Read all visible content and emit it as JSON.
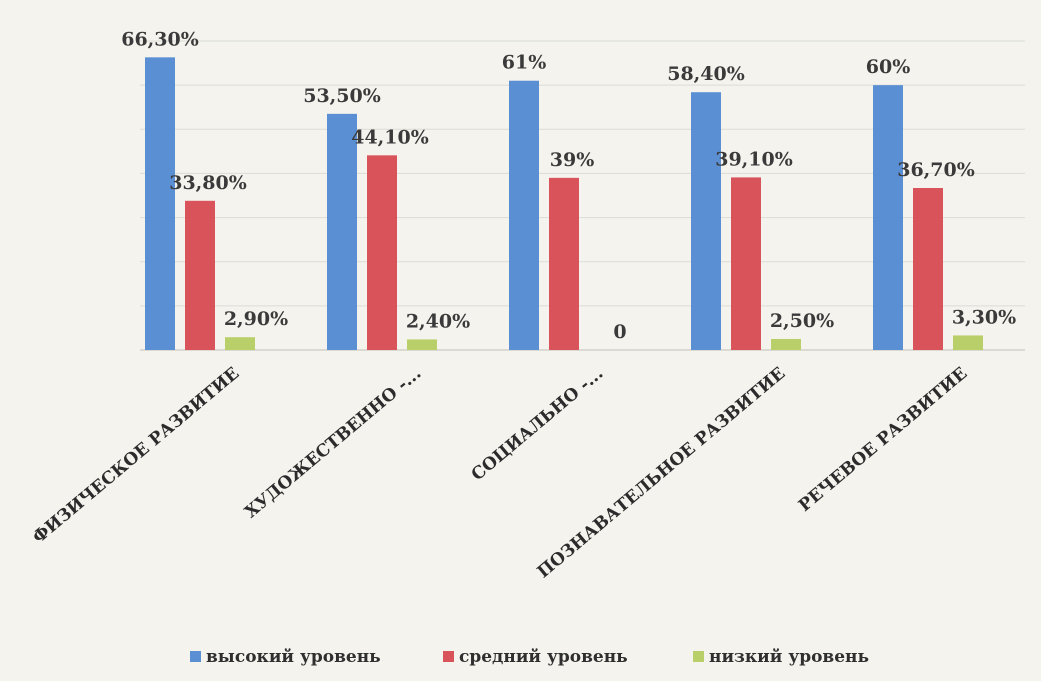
{
  "chart_data": {
    "type": "bar",
    "categories": [
      "ФИЗИЧЕСКОЕ РАЗВИТИЕ",
      "ХУДОЖЕСТВЕННО -...",
      "СОЦИАЛЬНО -...",
      "ПОЗНАВАТЕЛЬНОЕ РАЗВИТИЕ",
      "РЕЧЕВОЕ РАЗВИТИЕ"
    ],
    "series": [
      {
        "name": "высокий уровень",
        "color": "#5b8fd4",
        "values": [
          66.3,
          53.5,
          61,
          58.4,
          60
        ],
        "labels": [
          "66,30%",
          "53,50%",
          "61%",
          "58,40%",
          "60%"
        ]
      },
      {
        "name": "средний уровень",
        "color": "#d9545a",
        "values": [
          33.8,
          44.1,
          39,
          39.1,
          36.7
        ],
        "labels": [
          "33,80%",
          "44,10%",
          "39%",
          "39,10%",
          "36,70%"
        ]
      },
      {
        "name": "низкий уровень",
        "color": "#b9cf6a",
        "values": [
          2.9,
          2.4,
          0,
          2.5,
          3.3
        ],
        "labels": [
          "2,90%",
          "2,40%",
          "0",
          "2,50%",
          "3,30%"
        ]
      }
    ],
    "ylim": [
      0,
      70
    ],
    "grid": true,
    "legend_position": "bottom"
  }
}
